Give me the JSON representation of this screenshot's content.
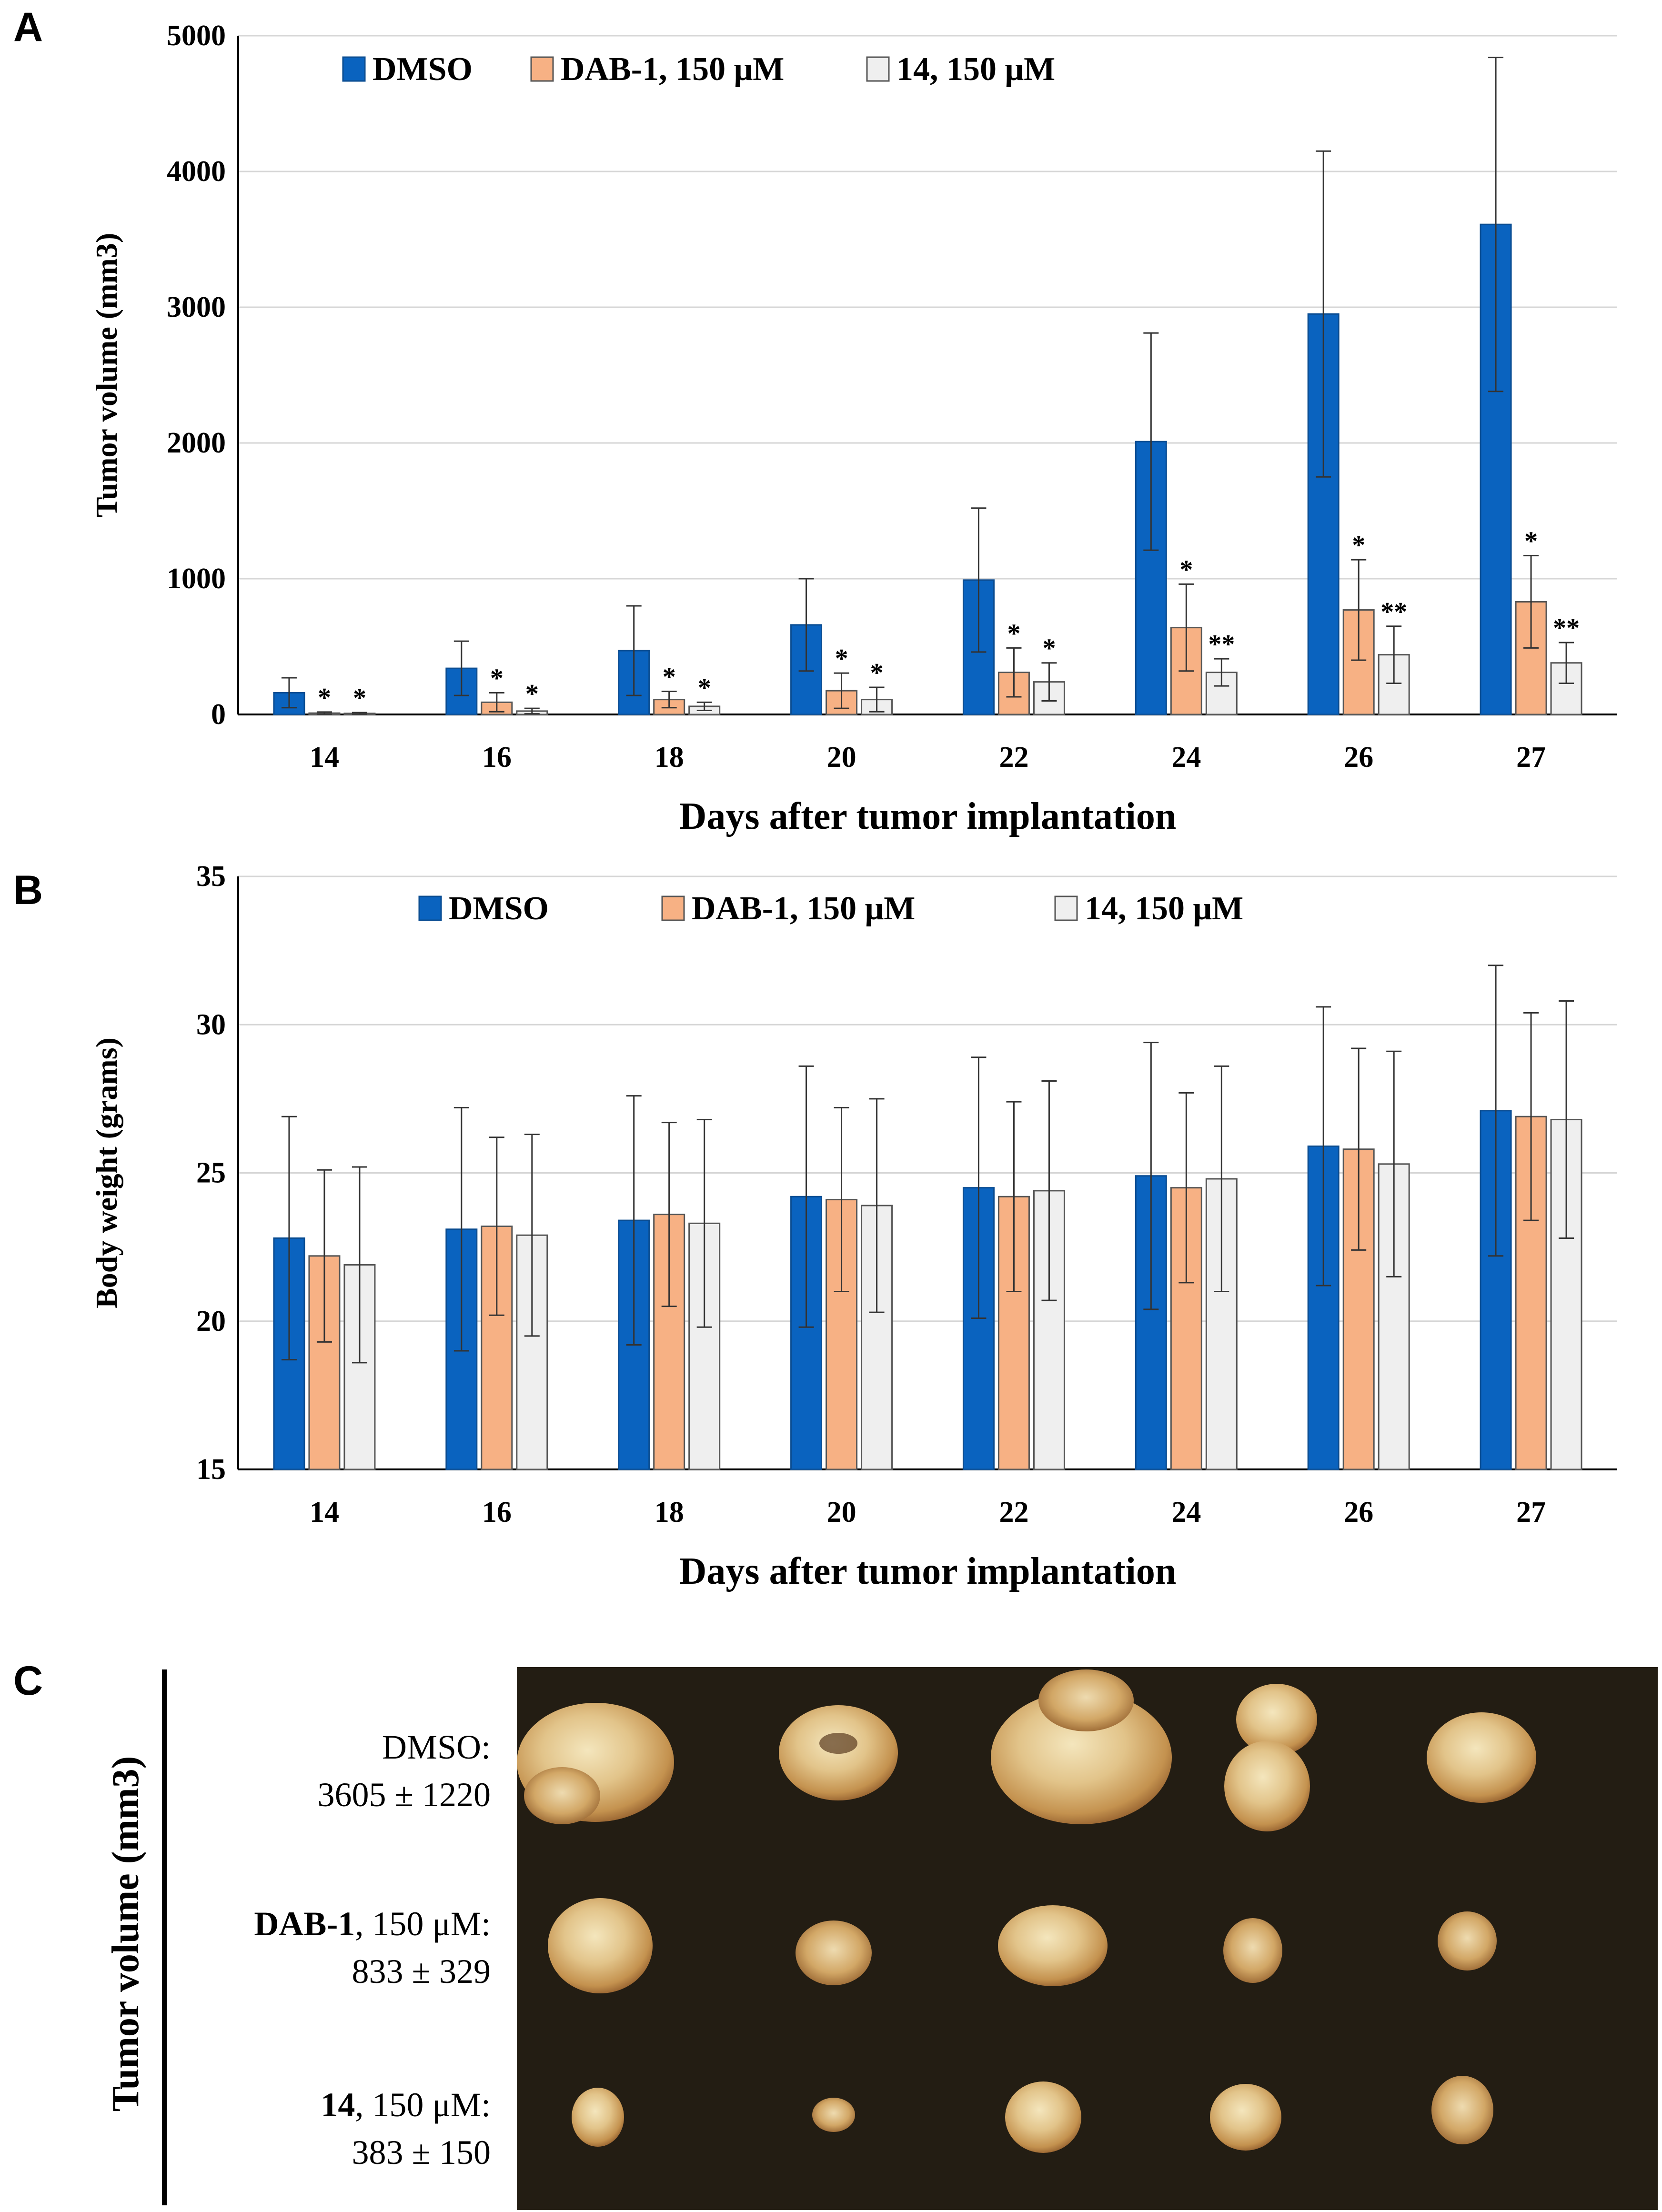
{
  "panels": {
    "a": "A",
    "b": "B",
    "c": "C"
  },
  "colors": {
    "dmso": "#0a63bf",
    "dab": "#f7b184",
    "cmpd14": "#efefef",
    "dmso_edge": "#0b4d92",
    "edge": "#555555"
  },
  "chart_data": [
    {
      "id": "A",
      "type": "bar",
      "title": "",
      "xlabel": "Days after tumor implantation",
      "ylabel": "Tumor volume (mm3)",
      "ylim": [
        0,
        5000
      ],
      "yticks": [
        0,
        1000,
        2000,
        3000,
        4000,
        5000
      ],
      "ytick_labels": [
        "0",
        "1000",
        "2000",
        "3000",
        "4000",
        "5000"
      ],
      "grid": true,
      "legend_position": "top",
      "categories": [
        "14",
        "16",
        "18",
        "20",
        "22",
        "24",
        "26",
        "27"
      ],
      "series": [
        {
          "name": "DMSO",
          "values": [
            160,
            340,
            470,
            660,
            990,
            2010,
            2950,
            3610
          ],
          "errors": [
            110,
            200,
            330,
            340,
            530,
            800,
            1200,
            1230
          ],
          "marks": [
            "",
            "",
            "",
            "",
            "",
            "",
            "",
            ""
          ]
        },
        {
          "name": "DAB-1, 150 μM",
          "values": [
            10,
            90,
            110,
            175,
            310,
            640,
            770,
            830
          ],
          "errors": [
            8,
            70,
            60,
            130,
            180,
            320,
            370,
            340
          ],
          "marks": [
            "*",
            "*",
            "*",
            "*",
            "*",
            "*",
            "*",
            "*"
          ]
        },
        {
          "name": "14, 150 μM",
          "values": [
            8,
            25,
            60,
            110,
            240,
            310,
            440,
            380
          ],
          "errors": [
            6,
            20,
            30,
            90,
            140,
            100,
            210,
            150
          ],
          "marks": [
            "*",
            "*",
            "*",
            "*",
            "*",
            "**",
            "**",
            "**"
          ]
        }
      ]
    },
    {
      "id": "B",
      "type": "bar",
      "title": "",
      "xlabel": "Days after tumor implantation",
      "ylabel": "Body weight  (grams)",
      "ylim": [
        15,
        35
      ],
      "yticks": [
        15,
        20,
        25,
        30,
        35
      ],
      "ytick_labels": [
        "15",
        "20",
        "25",
        "30",
        "35"
      ],
      "grid": true,
      "legend_position": "top",
      "categories": [
        "14",
        "16",
        "18",
        "20",
        "22",
        "24",
        "26",
        "27"
      ],
      "series": [
        {
          "name": "DMSO",
          "values": [
            22.8,
            23.1,
            23.4,
            24.2,
            24.5,
            24.9,
            25.9,
            27.1
          ],
          "errors": [
            4.1,
            4.1,
            4.2,
            4.4,
            4.4,
            4.5,
            4.7,
            4.9
          ]
        },
        {
          "name": "DAB-1, 150 μM",
          "values": [
            22.2,
            23.2,
            23.6,
            24.1,
            24.2,
            24.5,
            25.8,
            26.9
          ],
          "errors": [
            2.9,
            3.0,
            3.1,
            3.1,
            3.2,
            3.2,
            3.4,
            3.5
          ]
        },
        {
          "name": "14, 150 μM",
          "values": [
            21.9,
            22.9,
            23.3,
            23.9,
            24.4,
            24.8,
            25.3,
            26.8
          ],
          "errors": [
            3.3,
            3.4,
            3.5,
            3.6,
            3.7,
            3.8,
            3.8,
            4.0
          ]
        }
      ]
    }
  ],
  "panel_c": {
    "ylabel": "Tumor volume (mm3)",
    "rows": [
      {
        "name_bold": "",
        "name": "DMSO:",
        "value": "3605 ± 1220"
      },
      {
        "name_bold": "DAB-1",
        "name": ", 150 μM:",
        "value": "833 ± 329"
      },
      {
        "name_bold": "14",
        "name": ", 150 μM:",
        "value": "383 ± 150"
      }
    ]
  }
}
